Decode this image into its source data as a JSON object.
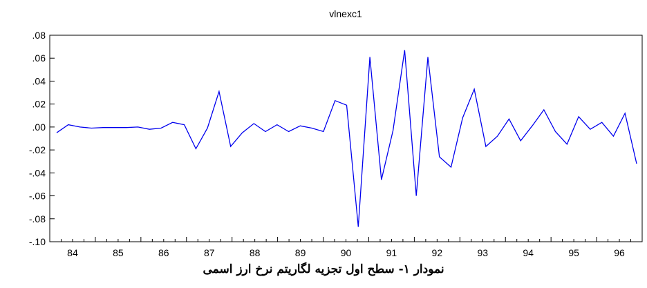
{
  "chart_data": {
    "type": "line",
    "title": "vlnexc1",
    "xlabel": "",
    "ylabel": "",
    "ylim": [
      -0.1,
      0.08
    ],
    "y_ticks": [
      ".08",
      ".06",
      ".04",
      ".02",
      ".00",
      "-.02",
      "-.04",
      "-.06",
      "-.08",
      "-.10"
    ],
    "y_tick_values": [
      0.08,
      0.06,
      0.04,
      0.02,
      0.0,
      -0.02,
      -0.04,
      -0.06,
      -0.08,
      -0.1
    ],
    "x_ticks": [
      "84",
      "85",
      "86",
      "87",
      "88",
      "89",
      "90",
      "91",
      "92",
      "93",
      "94",
      "95",
      "96"
    ],
    "grid": false,
    "line_color": "#0000ee",
    "series": [
      {
        "values": [
          -0.005,
          0.002,
          0.0,
          -0.001,
          -0.0005,
          -0.0005,
          -0.0005,
          0.0,
          -0.002,
          -0.001,
          0.004,
          0.002,
          -0.019,
          -0.001,
          0.031,
          -0.017,
          -0.005,
          0.003,
          -0.004,
          0.002,
          -0.004,
          0.001,
          -0.001,
          -0.004,
          0.023,
          0.019,
          -0.087,
          0.061,
          -0.046,
          -0.003,
          0.067,
          -0.06,
          0.061,
          -0.026,
          -0.035,
          0.008,
          0.033,
          -0.017,
          -0.008,
          0.007,
          -0.012,
          0.001,
          0.015,
          -0.004,
          -0.015,
          0.009,
          -0.002,
          0.004,
          -0.008,
          0.012,
          -0.032
        ]
      }
    ]
  },
  "caption": "نمودار ۱- سطح اول تجزیه لگاریتم نرخ ارز اسمی"
}
